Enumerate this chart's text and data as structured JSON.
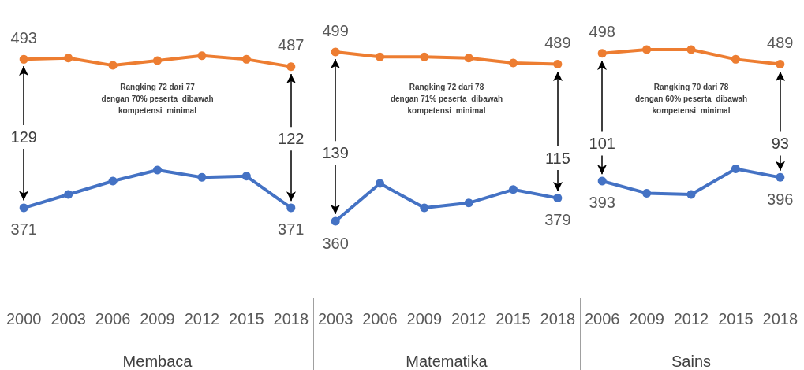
{
  "chart_data": [
    {
      "type": "line",
      "xlabel": "Membaca",
      "categories": [
        "2000",
        "2003",
        "2006",
        "2009",
        "2012",
        "2015",
        "2018"
      ],
      "series": [
        {
          "color": "#ed7d31",
          "values": [
            493,
            494,
            488,
            492,
            496,
            493,
            487
          ],
          "value_labels": [
            "493",
            null,
            null,
            null,
            null,
            null,
            "487"
          ]
        },
        {
          "color": "#4472c4",
          "values": [
            371,
            382,
            393,
            402,
            396,
            397,
            371
          ],
          "value_labels": [
            "371",
            null,
            null,
            null,
            null,
            null,
            "371"
          ]
        }
      ],
      "tick_labels": "x",
      "marker": "circle",
      "line_style": "solid",
      "annotations": [
        {
          "text": "129",
          "x": "2000",
          "y": 429
        },
        {
          "text": "122",
          "x": "2018",
          "y": 428
        },
        "Rangking 72 dari 77\ndengan 70% peserta  dibawah\nkompetensi  minimal"
      ]
    },
    {
      "type": "line",
      "xlabel": "Matematika",
      "categories": [
        "2003",
        "2006",
        "2009",
        "2012",
        "2015",
        "2018"
      ],
      "series": [
        {
          "color": "#ed7d31",
          "values": [
            499,
            495,
            495,
            494,
            490,
            489
          ],
          "value_labels": [
            "499",
            null,
            null,
            null,
            null,
            "489"
          ]
        },
        {
          "color": "#4472c4",
          "values": [
            360,
            391,
            371,
            375,
            386,
            379
          ],
          "value_labels": [
            "360",
            null,
            null,
            null,
            null,
            "379"
          ]
        }
      ],
      "tick_labels": "x",
      "marker": "circle",
      "line_style": "solid",
      "annotations": [
        {
          "text": "139",
          "x": "2003",
          "y": 416
        },
        {
          "text": "115",
          "x": "2018",
          "y": 412
        },
        "Rangking 72 dari 78\ndengan 71% peserta  dibawah\nkompetensi  minimal"
      ]
    },
    {
      "type": "line",
      "xlabel": "Sains",
      "categories": [
        "2006",
        "2009",
        "2012",
        "2015",
        "2018"
      ],
      "series": [
        {
          "color": "#ed7d31",
          "values": [
            498,
            501,
            501,
            493,
            489
          ],
          "value_labels": [
            "498",
            null,
            null,
            null,
            "489"
          ]
        },
        {
          "color": "#4472c4",
          "values": [
            393,
            383,
            382,
            403,
            396
          ],
          "value_labels": [
            "393",
            null,
            null,
            null,
            "396"
          ]
        }
      ],
      "tick_labels": "x",
      "marker": "circle",
      "line_style": "solid",
      "annotations": [
        {
          "text": "101",
          "x": "2006",
          "y": 424
        },
        {
          "text": "93",
          "x": "2018",
          "y": 424
        },
        "Rangking 70 dari 78\ndengan 60% peserta  dibawah\nkompetensi  minimal"
      ]
    }
  ]
}
